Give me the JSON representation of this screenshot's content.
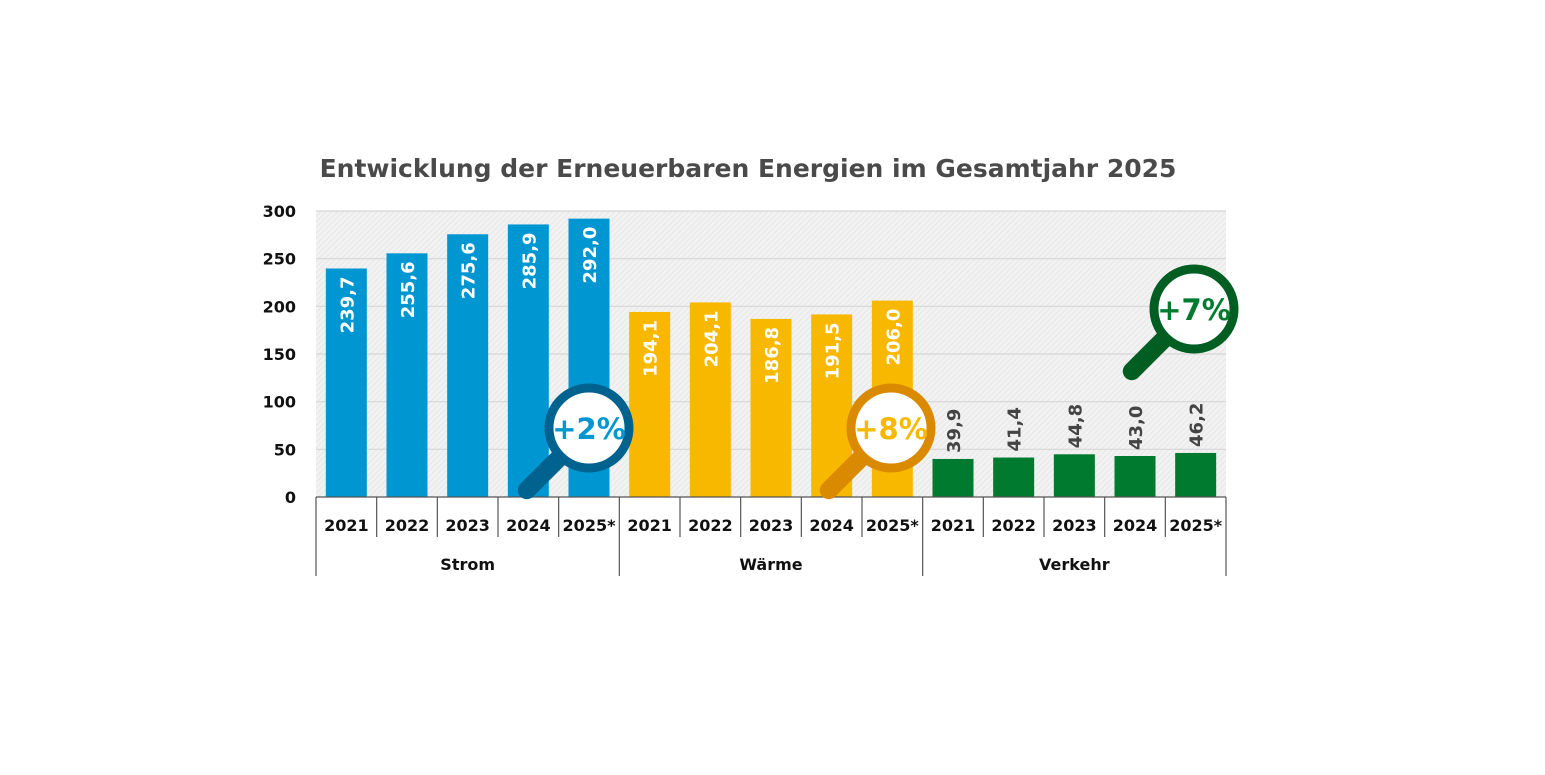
{
  "chart_data": {
    "type": "bar",
    "title": "Entwicklung der Erneuerbaren Energien im Gesamtjahr 2025",
    "xlabel": "",
    "ylabel": "",
    "ylim": [
      0,
      300
    ],
    "yticks": [
      0,
      50,
      100,
      150,
      200,
      250,
      300
    ],
    "grid": true,
    "legend": "none",
    "groups": [
      {
        "name": "Strom",
        "color": "#0096d2",
        "label_color": "#ffffff",
        "label_position": "inside",
        "categories": [
          "2021",
          "2022",
          "2023",
          "2024",
          "2025*"
        ],
        "values": [
          239.7,
          255.6,
          275.6,
          285.9,
          292.0
        ],
        "value_labels": [
          "239,7",
          "255,6",
          "275,6",
          "285,9",
          "292,0"
        ],
        "badge": {
          "text": "+2%",
          "ring_color": "#00628f",
          "text_color": "#0096d2"
        }
      },
      {
        "name": "Wärme",
        "color": "#f9b800",
        "label_color": "#ffffff",
        "label_position": "inside",
        "categories": [
          "2021",
          "2022",
          "2023",
          "2024",
          "2025*"
        ],
        "values": [
          194.1,
          204.1,
          186.8,
          191.5,
          206.0
        ],
        "value_labels": [
          "194,1",
          "204,1",
          "186,8",
          "191,5",
          "206,0"
        ],
        "badge": {
          "text": "+8%",
          "ring_color": "#d98a00",
          "text_color": "#f9b800"
        }
      },
      {
        "name": "Verkehr",
        "color": "#007a2e",
        "label_color": "#444444",
        "label_position": "outside",
        "categories": [
          "2021",
          "2022",
          "2023",
          "2024",
          "2025*"
        ],
        "values": [
          39.9,
          41.4,
          44.8,
          43.0,
          46.2
        ],
        "value_labels": [
          "39,9",
          "41,4",
          "44,8",
          "43,0",
          "46,2"
        ],
        "badge": {
          "text": "+7%",
          "ring_color": "#005e22",
          "text_color": "#007a2e"
        }
      }
    ]
  }
}
